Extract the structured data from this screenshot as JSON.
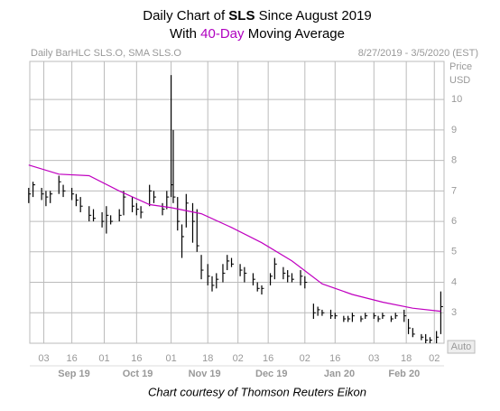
{
  "chart_data": {
    "type": "hlc",
    "title": [
      "Daily Chart of ",
      "SLS",
      " Since August 2019"
    ],
    "subtitle": [
      "With ",
      "40-Day",
      " Moving Average"
    ],
    "subtitle_highlight_color": "#b000c0",
    "header_left": "Daily BarHLC SLS.O, SMA SLS.O",
    "header_right": "8/27/2019 - 3/5/2020 (EST)",
    "y_axis_label": [
      "Price",
      "USD"
    ],
    "scale_mode": "Auto",
    "footer": "Chart courtesy of Thomson Reuters Eikon",
    "grid": true,
    "xlim": [
      0.5,
      192.5
    ],
    "ylim": [
      2,
      11.25
    ],
    "yticks": [
      3,
      4,
      5,
      6,
      7,
      8,
      9,
      10
    ],
    "xticks": [
      {
        "value": 7,
        "label": "03"
      },
      {
        "value": 20,
        "label": "16"
      },
      {
        "value": 35,
        "label": "01"
      },
      {
        "value": 50,
        "label": "16"
      },
      {
        "value": 66,
        "label": "01"
      },
      {
        "value": 83,
        "label": "18"
      },
      {
        "value": 97,
        "label": "02"
      },
      {
        "value": 111,
        "label": "16"
      },
      {
        "value": 128,
        "label": "02"
      },
      {
        "value": 142,
        "label": "16"
      },
      {
        "value": 160,
        "label": "03"
      },
      {
        "value": 175,
        "label": "18"
      },
      {
        "value": 188,
        "label": "02"
      }
    ],
    "months": [
      "Sep 19",
      "Oct 19",
      "Nov 19",
      "Dec 19",
      "Jan 20",
      "Feb 20"
    ],
    "bars": {
      "color": "#000000",
      "x": [
        0,
        2,
        6,
        8,
        10,
        14,
        16,
        20,
        22,
        24,
        28,
        30,
        34,
        36,
        38,
        42,
        44,
        48,
        50,
        52,
        56,
        58,
        62,
        64,
        66,
        67,
        69,
        71,
        73,
        76,
        78,
        80,
        83,
        85,
        87,
        90,
        92,
        94,
        98,
        100,
        104,
        106,
        108,
        112,
        114,
        118,
        120,
        122,
        126,
        128,
        132,
        134,
        136,
        140,
        142,
        146,
        148,
        150,
        154,
        156,
        160,
        162,
        164,
        168,
        170,
        174,
        176,
        178,
        182,
        184,
        186,
        189,
        191
      ],
      "high": [
        7.1,
        7.3,
        7.1,
        7.0,
        7.0,
        7.5,
        7.2,
        7.1,
        6.9,
        6.8,
        6.5,
        6.4,
        6.3,
        6.5,
        6.2,
        6.4,
        7.0,
        6.8,
        6.6,
        6.5,
        7.2,
        7.0,
        6.6,
        7.0,
        10.8,
        9.0,
        6.8,
        5.9,
        6.9,
        6.6,
        6.4,
        4.9,
        4.6,
        4.2,
        4.3,
        4.6,
        4.9,
        4.8,
        4.6,
        4.5,
        4.3,
        4.0,
        3.9,
        4.3,
        4.8,
        4.5,
        4.4,
        4.3,
        4.4,
        4.2,
        3.3,
        3.2,
        3.1,
        3.1,
        3.0,
        2.9,
        2.9,
        3.0,
        2.9,
        3.0,
        3.0,
        2.9,
        3.0,
        2.9,
        3.0,
        3.1,
        2.8,
        2.5,
        2.3,
        2.3,
        2.2,
        2.4,
        3.7
      ],
      "low": [
        6.6,
        6.8,
        6.7,
        6.5,
        6.6,
        6.9,
        6.8,
        6.7,
        6.5,
        6.3,
        6.0,
        6.0,
        5.8,
        5.6,
        5.9,
        6.0,
        6.2,
        6.3,
        6.2,
        6.1,
        6.5,
        6.6,
        6.2,
        6.4,
        6.8,
        6.6,
        5.7,
        4.8,
        5.8,
        5.3,
        5.0,
        4.1,
        3.9,
        3.7,
        3.8,
        4.0,
        4.4,
        4.5,
        4.2,
        4.0,
        3.9,
        3.7,
        3.6,
        3.9,
        4.1,
        4.1,
        4.0,
        4.0,
        3.9,
        3.8,
        2.8,
        2.9,
        2.9,
        2.8,
        2.8,
        2.7,
        2.7,
        2.7,
        2.7,
        2.8,
        2.8,
        2.7,
        2.8,
        2.7,
        2.8,
        2.7,
        2.3,
        2.2,
        2.1,
        2.0,
        2.0,
        2.0,
        2.3
      ],
      "close": [
        6.9,
        7.2,
        6.9,
        6.8,
        6.9,
        7.3,
        7.0,
        6.9,
        6.7,
        6.5,
        6.2,
        6.1,
        6.0,
        6.2,
        6.0,
        6.2,
        6.8,
        6.5,
        6.4,
        6.3,
        7.0,
        6.8,
        6.4,
        6.8,
        7.2,
        6.8,
        6.0,
        5.5,
        6.6,
        6.0,
        5.2,
        4.4,
        4.2,
        3.9,
        4.1,
        4.3,
        4.7,
        4.6,
        4.4,
        4.3,
        4.1,
        3.8,
        3.8,
        4.2,
        4.6,
        4.3,
        4.2,
        4.1,
        4.2,
        4.0,
        3.0,
        3.1,
        3.0,
        2.9,
        2.9,
        2.8,
        2.8,
        2.9,
        2.8,
        2.9,
        2.9,
        2.8,
        2.9,
        2.8,
        2.9,
        2.9,
        2.5,
        2.3,
        2.2,
        2.1,
        2.1,
        2.2,
        3.2
      ]
    },
    "sma": {
      "color": "#c000c0",
      "x": [
        0,
        14,
        28,
        42,
        56,
        66,
        80,
        94,
        108,
        122,
        136,
        150,
        164,
        178,
        191
      ],
      "values": [
        7.85,
        7.55,
        7.5,
        7.0,
        6.55,
        6.45,
        6.25,
        5.8,
        5.3,
        4.7,
        3.95,
        3.6,
        3.35,
        3.15,
        3.05
      ]
    }
  }
}
